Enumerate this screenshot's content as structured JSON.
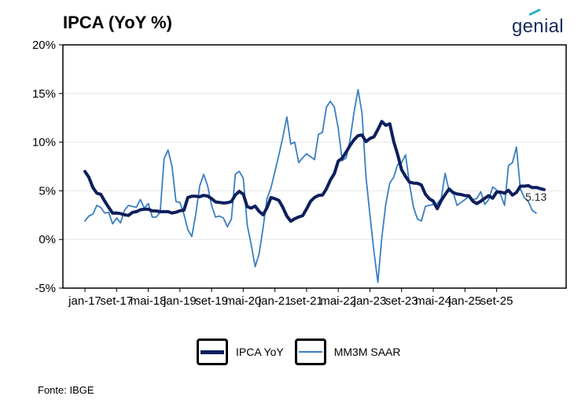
{
  "header": {
    "title": "IPCA (YoY %)",
    "brand": "genial"
  },
  "source": "Fonte: IBGE",
  "legend": {
    "items": [
      {
        "label": "IPCA YoY",
        "color": "#0d1f5c"
      },
      {
        "label": "MM3M SAAR",
        "color": "#3a7fc1"
      }
    ]
  },
  "colors": {
    "yoy": "#0d1f5c",
    "saar": "#3a7fc1",
    "grid": "#e6e6e6"
  },
  "chart_data": {
    "type": "line",
    "title": "IPCA (YoY %)",
    "xlabel": "",
    "ylabel": "",
    "x_start": "jan-17",
    "x_ticks": [
      "jan-17",
      "set-17",
      "mai-18",
      "jan-19",
      "set-19",
      "mai-20",
      "jan-21",
      "set-21",
      "mai-22",
      "jan-23",
      "set-23",
      "mai-24",
      "jan-25",
      "set-25"
    ],
    "y_ticks": [
      "20%",
      "15%",
      "10%",
      "5%",
      "0%",
      "-5%"
    ],
    "ylim": [
      -5,
      20
    ],
    "grid": "horizontal",
    "legend_position": "bottom",
    "annotations": [
      {
        "series": "IPCA YoY",
        "text": "5.13"
      }
    ],
    "series": [
      {
        "name": "IPCA YoY",
        "values": [
          6.99,
          6.4,
          5.35,
          4.76,
          4.64,
          3.93,
          3.3,
          2.71,
          2.72,
          2.66,
          2.54,
          2.47,
          2.78,
          2.86,
          3.05,
          3.11,
          3.11,
          2.94,
          2.93,
          2.86,
          2.86,
          2.86,
          2.72,
          2.8,
          2.95,
          3.01,
          4.31,
          4.44,
          4.44,
          4.39,
          4.53,
          4.46,
          4.2,
          3.86,
          3.8,
          3.75,
          3.78,
          3.89,
          4.58,
          4.94,
          4.66,
          3.37,
          3.22,
          3.43,
          2.89,
          2.54,
          3.27,
          4.31,
          4.19,
          4.01,
          3.3,
          2.4,
          1.88,
          2.13,
          2.31,
          2.44,
          3.14,
          3.92,
          4.31,
          4.52,
          4.56,
          5.2,
          6.1,
          6.76,
          8.06,
          8.35,
          8.99,
          9.68,
          10.25,
          10.67,
          10.74,
          10.06,
          10.38,
          10.54,
          11.3,
          12.13,
          11.73,
          11.89,
          10.07,
          8.73,
          7.17,
          6.47,
          5.9,
          5.79,
          5.77,
          5.6,
          4.65,
          4.18,
          3.94,
          3.16,
          3.99,
          4.61,
          5.19,
          4.82,
          4.68,
          4.62,
          4.51,
          4.5,
          3.93,
          3.69,
          3.93,
          4.23,
          4.5,
          4.24,
          4.87,
          4.87,
          4.76,
          5.06,
          4.56,
          4.83,
          5.48,
          5.48,
          5.53,
          5.32,
          5.35,
          5.23,
          5.13
        ]
      },
      {
        "name": "MM3M SAAR",
        "values": [
          1.9,
          2.4,
          2.6,
          3.5,
          3.3,
          2.7,
          2.8,
          1.6,
          2.2,
          1.7,
          3.0,
          3.5,
          3.4,
          3.3,
          4.1,
          3.2,
          3.7,
          2.3,
          2.3,
          2.8,
          8.3,
          9.2,
          7.5,
          3.9,
          3.8,
          2.6,
          1.0,
          0.3,
          2.6,
          5.5,
          6.7,
          5.5,
          3.5,
          2.3,
          2.4,
          2.2,
          1.3,
          2.1,
          6.7,
          7.0,
          6.3,
          1.5,
          -0.5,
          -2.8,
          -1.5,
          1.2,
          4.2,
          5.3,
          7.0,
          8.7,
          10.5,
          12.6,
          9.8,
          10.0,
          7.9,
          8.4,
          8.8,
          8.5,
          8.2,
          10.8,
          11.0,
          13.6,
          14.2,
          13.6,
          11.4,
          8.1,
          8.4,
          10.3,
          13.1,
          15.4,
          13.0,
          6.5,
          2.5,
          -1.2,
          -4.4,
          0.2,
          3.6,
          5.8,
          6.4,
          7.7,
          7.9,
          8.7,
          5.7,
          3.3,
          2.1,
          1.9,
          3.4,
          3.5,
          3.6,
          3.7,
          4.2,
          6.8,
          5.0,
          4.9,
          3.5,
          3.8,
          4.1,
          4.4,
          4.1,
          4.2,
          4.9,
          3.6,
          4.1,
          5.4,
          5.1,
          4.6,
          3.5,
          7.6,
          7.9,
          9.5,
          5.2,
          4.3,
          3.9,
          3.0,
          2.7
        ]
      }
    ]
  }
}
